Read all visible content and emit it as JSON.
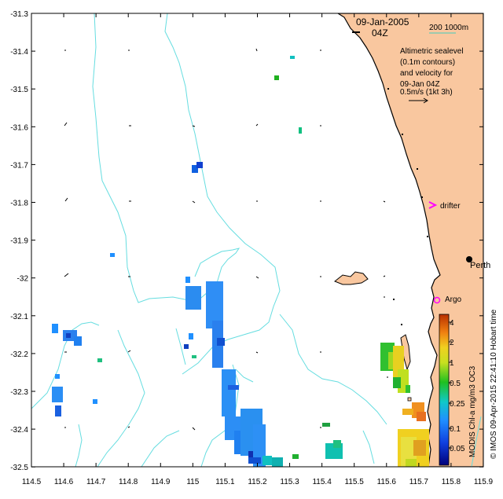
{
  "map": {
    "title_date": "09-Jan-2005",
    "title_time": "04Z",
    "scale_label": "200  1000m",
    "legend_lines": [
      "Altimetric sealevel",
      "(0.1m contours)",
      "and velocity for",
      "09-Jan 04Z",
      "0.5m/s (1kt 3h)"
    ],
    "places": {
      "drifter": "drifter",
      "perth": "Perth",
      "argo": "Argo"
    },
    "y_ticks": [
      "-31.3",
      "-31.4",
      "-31.5",
      "-31.6",
      "-31.7",
      "-31.8",
      "-31.9",
      "-32",
      "-32.1",
      "-32.2",
      "-32.3",
      "-32.4",
      "-32.5"
    ],
    "x_ticks": [
      "114.5",
      "114.6",
      "114.7",
      "114.8",
      "114.9",
      "115",
      "115.1",
      "115.2",
      "115.3",
      "115.4",
      "115.5",
      "115.6",
      "115.7",
      "115.8",
      "115.9"
    ],
    "colorbar": {
      "title": "MODIS Chl-a mg/m3 OC3",
      "tick_labels": [
        "4",
        "2",
        "1",
        "0.5",
        "0.25",
        "0.1",
        "0.05"
      ]
    },
    "credit": "© IMOS 09-Apr-2015 22:41:10 Hobart time",
    "colors": {
      "land": "#f9c79f",
      "contour": "#66dde0",
      "scale_bar": "#44ccbb",
      "marker": "#ff00ff"
    }
  }
}
